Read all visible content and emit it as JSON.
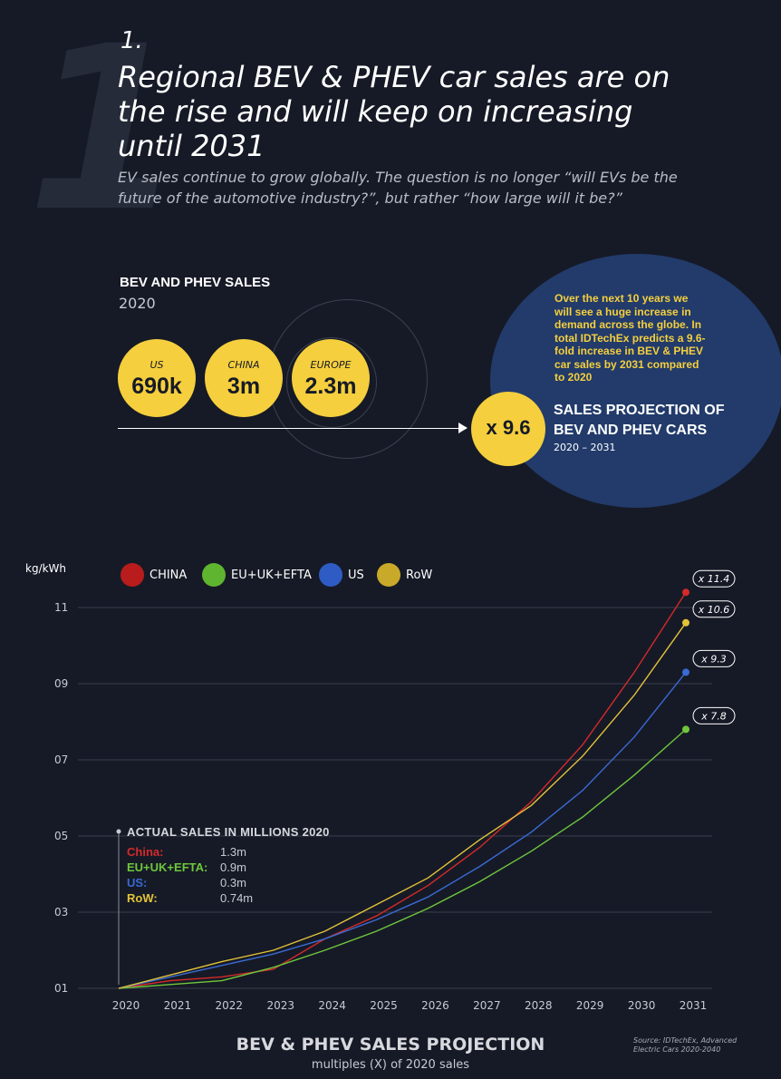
{
  "header": {
    "big_number": "1",
    "section_number": "1.",
    "headline": "Regional BEV & PHEV car sales are on the rise and will keep on increasing until 2031",
    "subtitle": "EV sales continue to grow globally. The question is no longer “will EVs be the future of the automotive industry?”, but rather “how large will it be?”"
  },
  "sales_2020": {
    "title": "BEV AND PHEV SALES",
    "year": "2020",
    "items": [
      {
        "label": "US",
        "value": "690k"
      },
      {
        "label": "CHINA",
        "value": "3m"
      },
      {
        "label": "EUROPE",
        "value": "2.3m"
      }
    ]
  },
  "projection_callout": {
    "text": "Over the next 10 years we will see a huge increase in demand across the globe. In total IDTechEx predicts a 9.6-fold increase in BEV & PHEV car sales by 2031 compared to 2020",
    "multiplier": "x 9.6",
    "title": "SALES PROJECTION OF BEV AND PHEV CARS",
    "years": "2020 – 2031"
  },
  "colors": {
    "background": "#161a26",
    "accent_yellow": "#f5cf3d",
    "callout_blue": "#223b6b",
    "china": "#d42a2a",
    "eu": "#6fc73c",
    "us": "#3a6ad4",
    "row": "#e3c23a"
  },
  "chart_data": {
    "type": "line",
    "title": "BEV & PHEV SALES PROJECTION",
    "subtitle": "multiples (X) of 2020 sales",
    "ylabel": "kg/kWh",
    "xlabel": "",
    "source": "Source: IDTechEx, Advanced Electric Cars 2020-2040",
    "x": [
      "2020",
      "2021",
      "2022",
      "2023",
      "2024",
      "2025",
      "2026",
      "2027",
      "2028",
      "2029",
      "2030",
      "2031"
    ],
    "yticks": [
      "01",
      "03",
      "05",
      "07",
      "09",
      "11"
    ],
    "ylim": [
      1,
      11
    ],
    "series": [
      {
        "name": "CHINA",
        "color": "#d42a2a",
        "values": [
          1.0,
          1.2,
          1.3,
          1.5,
          2.3,
          2.9,
          3.7,
          4.7,
          5.9,
          7.4,
          9.3,
          11.4
        ],
        "end_label": "x 11.4"
      },
      {
        "name": "EU+UK+EFTA",
        "color": "#6fc73c",
        "values": [
          1.0,
          1.1,
          1.2,
          1.55,
          2.0,
          2.5,
          3.1,
          3.8,
          4.6,
          5.5,
          6.6,
          7.8
        ],
        "end_label": "x 7.8"
      },
      {
        "name": "US",
        "color": "#3a6ad4",
        "values": [
          1.0,
          1.3,
          1.6,
          1.9,
          2.3,
          2.8,
          3.4,
          4.2,
          5.1,
          6.2,
          7.6,
          9.3
        ],
        "end_label": "x 9.3"
      },
      {
        "name": "RoW",
        "color": "#e3c23a",
        "values": [
          1.0,
          1.35,
          1.7,
          2.0,
          2.5,
          3.2,
          3.9,
          4.9,
          5.8,
          7.1,
          8.7,
          10.6
        ],
        "end_label": "x 10.6"
      }
    ],
    "actual_sales": {
      "title": "ACTUAL SALES IN MILLIONS 2020",
      "rows": [
        {
          "region": "China:",
          "value": "1.3m",
          "color": "#d42a2a"
        },
        {
          "region": "EU+UK+EFTA:",
          "value": "0.9m",
          "color": "#6fc73c"
        },
        {
          "region": "US:",
          "value": "0.3m",
          "color": "#3a6ad4"
        },
        {
          "region": "RoW:",
          "value": "0.74m",
          "color": "#e3c23a"
        }
      ]
    }
  }
}
